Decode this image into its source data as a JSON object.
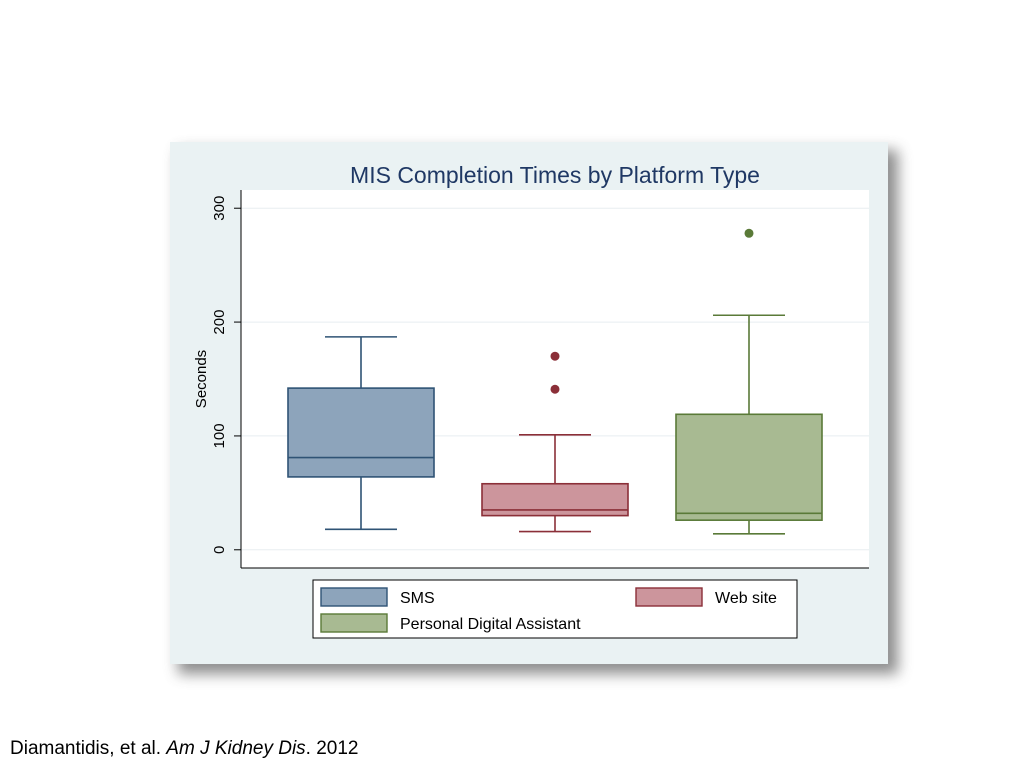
{
  "chart_data": {
    "type": "box",
    "title": "MIS Completion Times by Platform Type",
    "xlabel": "",
    "ylabel": "Seconds",
    "ylim": [
      -16,
      316
    ],
    "yticks": [
      0,
      100,
      200,
      300
    ],
    "grid": true,
    "legend_position": "bottom",
    "series": [
      {
        "name": "SMS",
        "color": "#8da4bb",
        "edge": "#2f5375",
        "min": 18,
        "q1": 64,
        "median": 81,
        "q3": 142,
        "max": 187,
        "outliers": []
      },
      {
        "name": "Web site",
        "color": "#cc959c",
        "edge": "#8b2f38",
        "min": 16,
        "q1": 30,
        "median": 35,
        "q3": 58,
        "max": 101,
        "outliers": [
          170,
          141
        ]
      },
      {
        "name": "Personal Digital Assistant",
        "color": "#a8ba92",
        "edge": "#5a7a38",
        "min": 14,
        "q1": 26,
        "median": 32,
        "q3": 119,
        "max": 206,
        "outliers": [
          278
        ]
      }
    ]
  },
  "caption": {
    "prefix": "Diamantidis, et al. ",
    "journal": "Am J Kidney Dis",
    "suffix": ". 2012"
  }
}
